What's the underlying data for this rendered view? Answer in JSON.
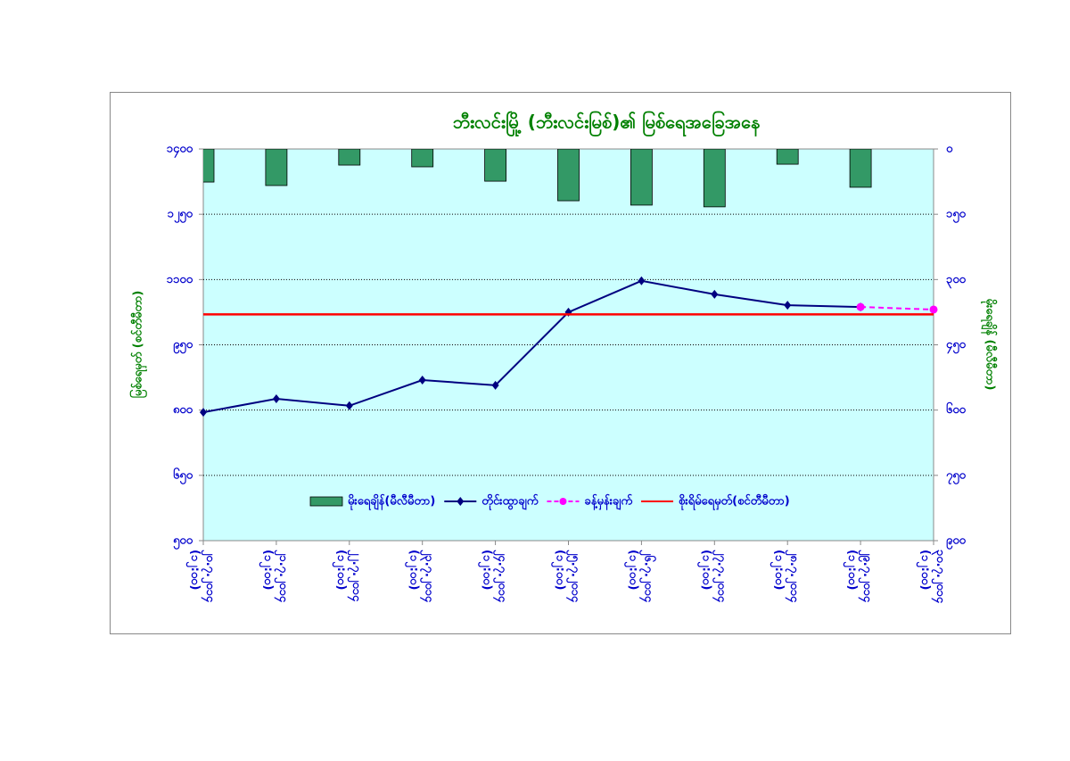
{
  "chart_data": {
    "type": "combo",
    "title": "ဘီးလင်းမြို့ (ဘီးလင်းမြစ်)၏ မြစ်ရေအခြေအနေ",
    "y_label": "မြစ်ရေမှတ် (စင်တီမီတာ)",
    "y2_label": "မိုးရေချိန် (မီလီမီတာ)",
    "categories": [
      [
        "၂၀.၇.၂၀၁၄",
        "(၁၂:၀၀)"
      ],
      [
        "၂၁.၇.၂၀၁၄",
        "(၁၂:၀၀)"
      ],
      [
        "၂၂.၇.၂၀၁၄",
        "(၁၂:၀၀)"
      ],
      [
        "၂၃.၇.၂၀၁၄",
        "(၁၂:၀၀)"
      ],
      [
        "၂၄.၇.၂၀၁၄",
        "(၁၂:၀၀)"
      ],
      [
        "၂၅.၇.၂၀၁၄",
        "(၁၂:၀၀)"
      ],
      [
        "၂၆.၇.၂၀၁၄",
        "(၁၂:၀၀)"
      ],
      [
        "၂၇.၇.၂၀၁၄",
        "(၁၂:၀၀)"
      ],
      [
        "၂၈.၇.၂၀၁၄",
        "(၁၂:၀၀)"
      ],
      [
        "၂၉.၇.၂၀၁၄",
        "(၁၂:၀၀)"
      ],
      [
        "၃၀.၇.၂၀၁၄",
        "(၁၂:၀၀)"
      ]
    ],
    "ylim": [
      500,
      1400
    ],
    "yticks": [
      {
        "value": 500,
        "label": "၅၀၀"
      },
      {
        "value": 650,
        "label": "၆၅၀"
      },
      {
        "value": 800,
        "label": "၈၀၀"
      },
      {
        "value": 950,
        "label": "၉၅၀"
      },
      {
        "value": 1100,
        "label": "၁၁၀၀"
      },
      {
        "value": 1250,
        "label": "၁၂၅၀"
      },
      {
        "value": 1400,
        "label": "၁၄၀၀"
      }
    ],
    "y2lim": [
      0,
      900
    ],
    "y2_inverted": true,
    "y2ticks": [
      {
        "value": 0,
        "label": "၀"
      },
      {
        "value": 150,
        "label": "၁၅၀"
      },
      {
        "value": 300,
        "label": "၃၀၀"
      },
      {
        "value": 450,
        "label": "၄၅၀"
      },
      {
        "value": 600,
        "label": "၆၀၀"
      },
      {
        "value": 750,
        "label": "၇၅၀"
      },
      {
        "value": 900,
        "label": "၉၀၀"
      }
    ],
    "grid": true,
    "series": [
      {
        "name": "မိုးရေချိန်(မီလီမီတာ)",
        "kind": "bar",
        "axis": "y2",
        "color": "#339966",
        "values": [
          76,
          84,
          37,
          41,
          74,
          119,
          129,
          133,
          35,
          88,
          null
        ]
      },
      {
        "name": "တိုင်းထွာချက်",
        "kind": "line",
        "color": "#000080",
        "values": [
          795,
          826,
          810,
          869,
          857,
          1025,
          1097,
          1066,
          1041,
          1037,
          null
        ]
      },
      {
        "name": "ခန့်မှန်းချက်",
        "kind": "dashed",
        "color": "#ff00ff",
        "values": [
          null,
          null,
          null,
          null,
          null,
          null,
          null,
          null,
          null,
          1037,
          1031
        ]
      },
      {
        "name": "စိုးရိမ်ရေမှတ်(စင်တီမီတာ)",
        "kind": "level",
        "color": "#ff0000",
        "value": 1020
      }
    ]
  }
}
